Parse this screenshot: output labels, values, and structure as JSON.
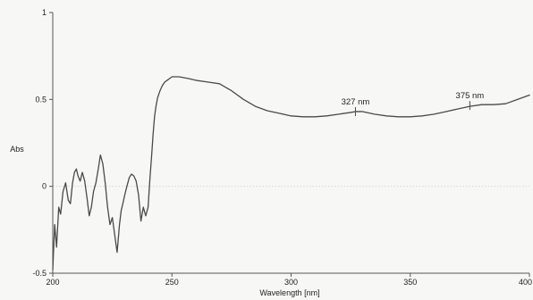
{
  "chart_data": {
    "type": "line",
    "title": "",
    "xlabel": "Wavelength [nm]",
    "ylabel": "Abs",
    "xlim": [
      200,
      400
    ],
    "ylim": [
      -0.5,
      1
    ],
    "xticks": [
      "200",
      "250",
      "300",
      "350",
      "400"
    ],
    "yticks": [
      "-0.5",
      "0",
      "0.5",
      "1"
    ],
    "grid": false,
    "reference_line": {
      "y": 0,
      "style": "dotted"
    },
    "colors": {
      "line": "#4a4a4a",
      "axis": "#555555",
      "reference": "#d6d6d6",
      "background": "#f7f7f5"
    },
    "series": [
      {
        "x": [
          200,
          200.8,
          201.6,
          202.5,
          203.3,
          204.3,
          205.4,
          206.5,
          207.4,
          208.3,
          209.1,
          209.9,
          210.6,
          211.5,
          212.4,
          213.4,
          214.4,
          215.3,
          216.2,
          217.1,
          218.1,
          219.1,
          220.0,
          221.0,
          222.0,
          223.0,
          224.0,
          225.0,
          226.0,
          227.0,
          228.0,
          228.7,
          229.4,
          230.2,
          231.1,
          232.1,
          233.0,
          234.0,
          235.0,
          236.0,
          237.0,
          238.0,
          239.0,
          240.0,
          240.8,
          241.5,
          242.1,
          242.7,
          243.3,
          244.0,
          245.0,
          246.0,
          247.0,
          248.0,
          249.0,
          250.0,
          251.5,
          253.0,
          255.0,
          257.0,
          260.0,
          265.0,
          270.0,
          275.0,
          280.0,
          285.0,
          290.0,
          295.0,
          300.0,
          305.0,
          310.0,
          315.0,
          320.0,
          325.0,
          327.0,
          330.0,
          335.0,
          340.0,
          345.0,
          350.0,
          355.0,
          360.0,
          365.0,
          370.0,
          375.0,
          380.0,
          385.0,
          390.0,
          395.0,
          400.0
        ],
        "y": [
          -0.48,
          -0.22,
          -0.35,
          -0.12,
          -0.16,
          -0.03,
          0.02,
          -0.08,
          -0.1,
          0.02,
          0.08,
          0.1,
          0.06,
          0.03,
          0.08,
          0.03,
          -0.07,
          -0.17,
          -0.12,
          -0.03,
          0.02,
          0.1,
          0.18,
          0.13,
          0.02,
          -0.12,
          -0.22,
          -0.18,
          -0.28,
          -0.38,
          -0.22,
          -0.14,
          -0.1,
          -0.05,
          0.0,
          0.05,
          0.07,
          0.06,
          0.03,
          -0.05,
          -0.2,
          -0.12,
          -0.17,
          -0.12,
          0.05,
          0.18,
          0.3,
          0.4,
          0.46,
          0.51,
          0.55,
          0.58,
          0.6,
          0.61,
          0.62,
          0.63,
          0.63,
          0.63,
          0.625,
          0.62,
          0.61,
          0.6,
          0.59,
          0.55,
          0.5,
          0.46,
          0.435,
          0.42,
          0.405,
          0.4,
          0.4,
          0.405,
          0.415,
          0.425,
          0.43,
          0.43,
          0.415,
          0.405,
          0.4,
          0.4,
          0.405,
          0.415,
          0.43,
          0.445,
          0.46,
          0.47,
          0.47,
          0.475,
          0.5,
          0.525
        ]
      }
    ],
    "annotations": [
      {
        "label": "327 nm",
        "x": 327,
        "y": 0.43
      },
      {
        "label": "375 nm",
        "x": 375,
        "y": 0.465
      }
    ]
  }
}
